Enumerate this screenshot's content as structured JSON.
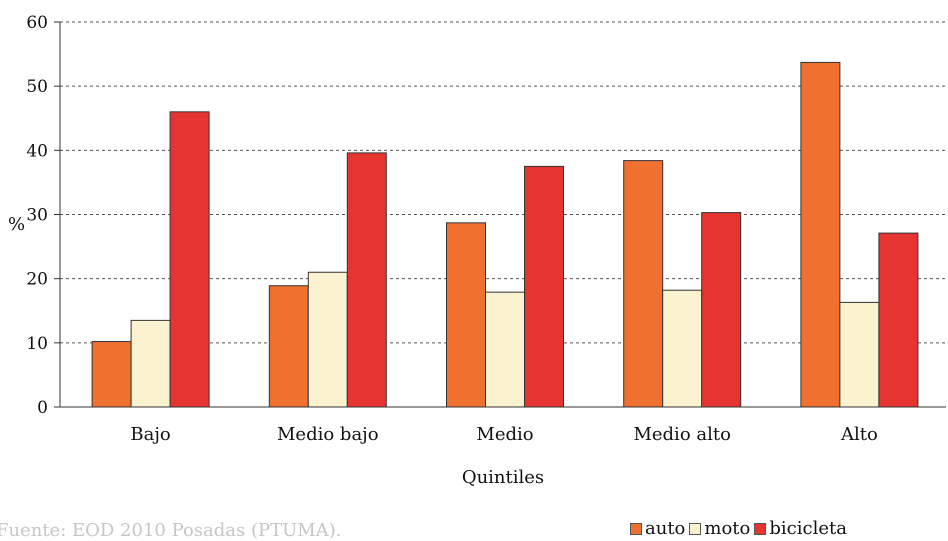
{
  "chart_data": {
    "type": "bar",
    "ylabel": "%",
    "xlabel": "Quintiles",
    "ylim": [
      0,
      60
    ],
    "yticks": [
      0,
      10,
      20,
      30,
      40,
      50,
      60
    ],
    "grid": "dashed-horizontal",
    "legend_position": "bottom-right",
    "categories": [
      "Bajo",
      "Medio bajo",
      "Medio",
      "Medio alto",
      "Alto"
    ],
    "series": [
      {
        "name": "auto",
        "color": "#f07030",
        "values": [
          10.2,
          18.9,
          28.7,
          38.4,
          53.7
        ]
      },
      {
        "name": "moto",
        "color": "#fbf3cf",
        "values": [
          13.5,
          21.0,
          17.9,
          18.2,
          16.3
        ]
      },
      {
        "name": "bicicleta",
        "color": "#e63530",
        "values": [
          46.0,
          39.6,
          37.5,
          30.3,
          27.1
        ]
      }
    ]
  },
  "source": "Fuente: EOD 2010 Posadas (PTUMA)."
}
